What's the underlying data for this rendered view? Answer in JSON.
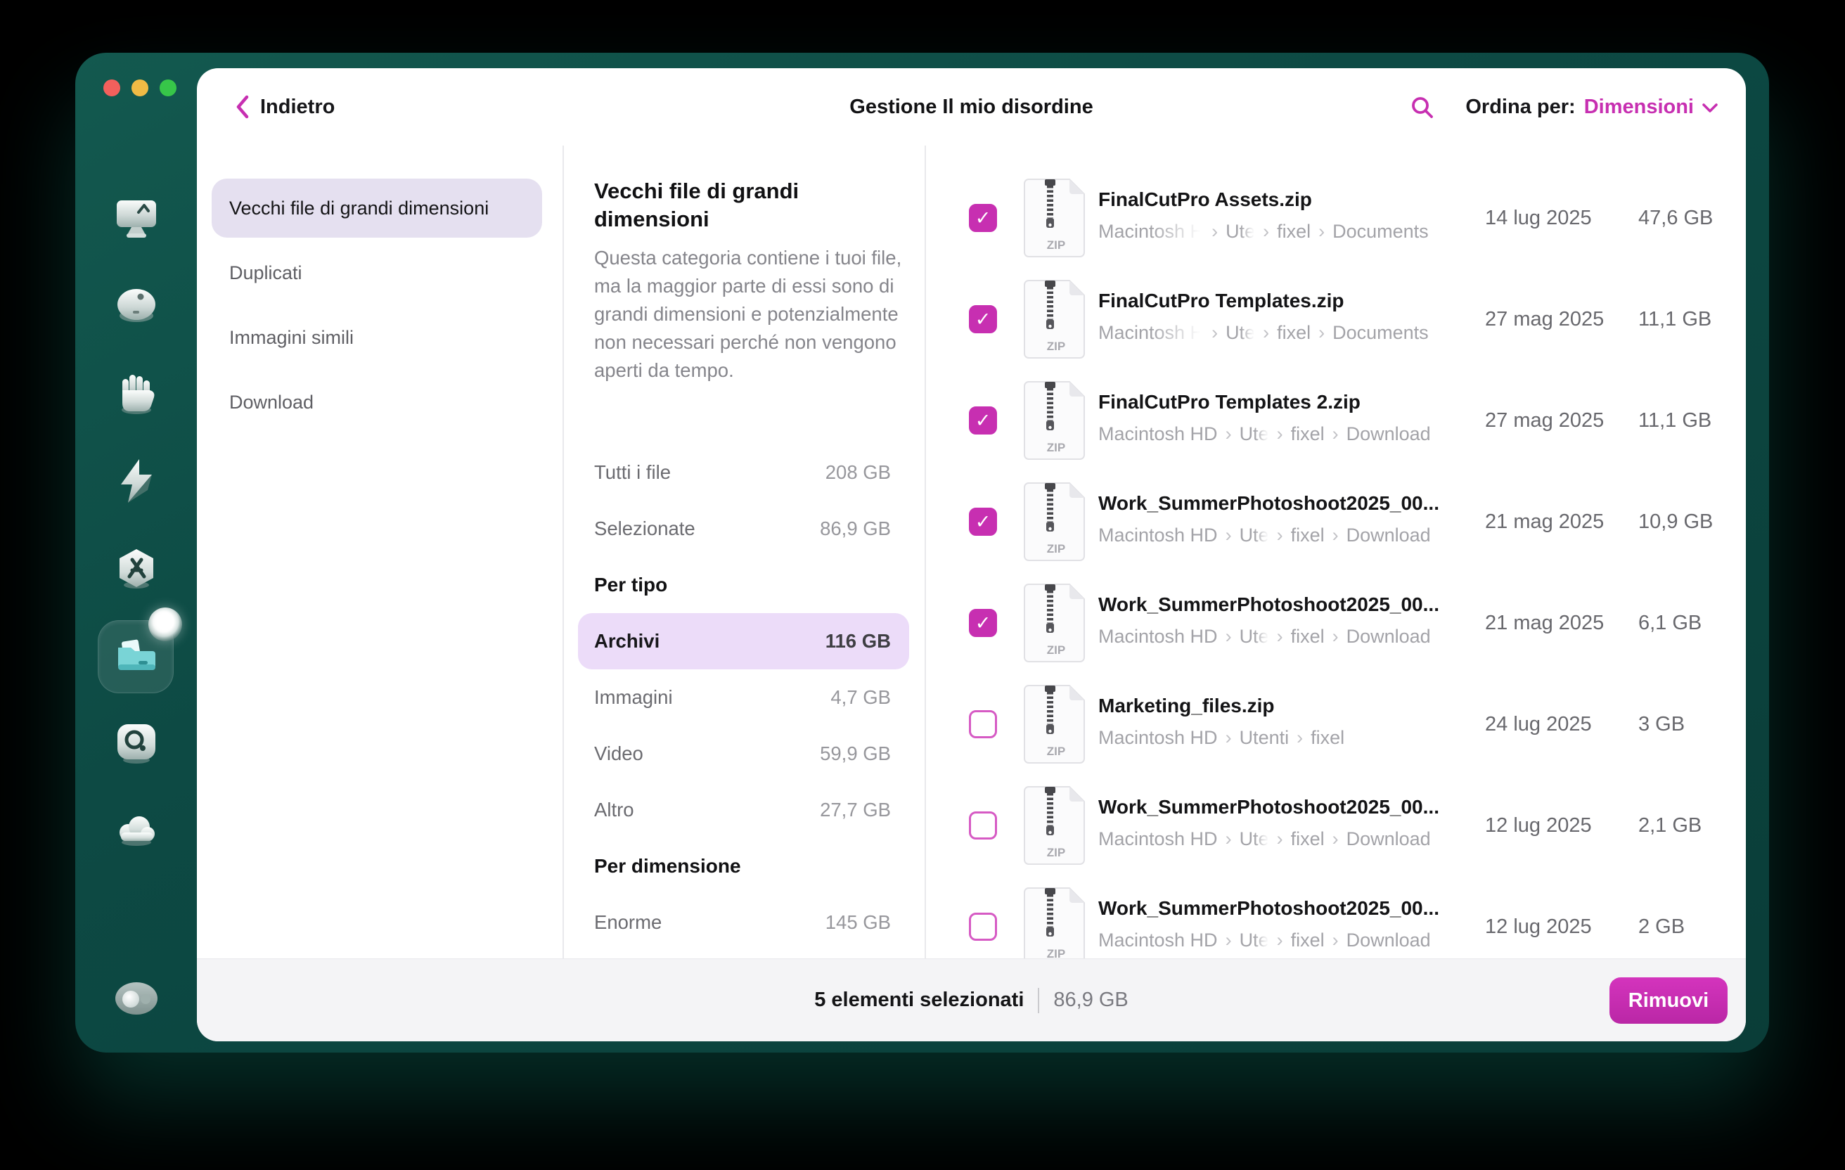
{
  "colors": {
    "accent": "#c72fb1",
    "window_teal": "#0d4a44",
    "selected_pill_lavender": "#e5e0f0",
    "highlight_pill_purple": "#ecdcf9",
    "footer_bg": "#f4f4f6"
  },
  "icons": {
    "header": [
      "back-chevron-icon",
      "search-icon",
      "chevron-down-icon"
    ],
    "sidebar": [
      "monitor-icon",
      "disk-icon",
      "hand-icon",
      "lightning-icon",
      "applications-hexagon-icon",
      "folder-icon",
      "lens-icon",
      "cloud-icon",
      "assistant-icon"
    ],
    "file_type": "zip-file-icon"
  },
  "header": {
    "back_label": "Indietro",
    "title": "Gestione Il mio disordine",
    "sort_label": "Ordina per:",
    "sort_value": "Dimensioni"
  },
  "sidebar": {
    "selected_index": 5
  },
  "categories": {
    "items": [
      {
        "label": "Vecchi file di grandi dimensioni",
        "selected": true
      },
      {
        "label": "Duplicati",
        "selected": false
      },
      {
        "label": "Immagini simili",
        "selected": false
      },
      {
        "label": "Download",
        "selected": false
      }
    ]
  },
  "detail": {
    "title": "Vecchi file di grandi dimensioni",
    "description": "Questa categoria contiene i tuoi file, ma la maggior parte di essi sono di grandi dimensioni e potenzialmente non necessari perché non vengono aperti da tempo.",
    "stats": [
      {
        "label": "Tutti i file",
        "value": "208 GB"
      },
      {
        "label": "Selezionate",
        "value": "86,9 GB"
      },
      {
        "label": "Per tipo",
        "header": true
      },
      {
        "label": "Archivi",
        "value": "116 GB",
        "highlighted": true
      },
      {
        "label": "Immagini",
        "value": "4,7 GB"
      },
      {
        "label": "Video",
        "value": "59,9 GB"
      },
      {
        "label": "Altro",
        "value": "27,7 GB"
      },
      {
        "label": "Per dimensione",
        "header": true
      },
      {
        "label": "Enorme",
        "value": "145 GB"
      }
    ]
  },
  "files": {
    "rows": [
      {
        "checked": true,
        "name": "FinalCutPro Assets.zip",
        "path": [
          {
            "t": "Macintosh H",
            "fade": true
          },
          {
            "t": "Ute",
            "fade": true
          },
          {
            "t": "fixel"
          },
          {
            "t": "Documents"
          }
        ],
        "date": "14 lug 2025",
        "size": "47,6 GB"
      },
      {
        "checked": true,
        "name": "FinalCutPro Templates.zip",
        "path": [
          {
            "t": "Macintosh H",
            "fade": true
          },
          {
            "t": "Ute",
            "fade": true
          },
          {
            "t": "fixel"
          },
          {
            "t": "Documents"
          }
        ],
        "date": "27 mag 2025",
        "size": "11,1 GB"
      },
      {
        "checked": true,
        "name": "FinalCutPro Templates 2.zip",
        "path": [
          {
            "t": "Macintosh HD"
          },
          {
            "t": "Ute",
            "fade": true
          },
          {
            "t": "fixel"
          },
          {
            "t": "Download"
          }
        ],
        "date": "27 mag 2025",
        "size": "11,1 GB"
      },
      {
        "checked": true,
        "name": "Work_SummerPhotoshoot2025_00...",
        "path": [
          {
            "t": "Macintosh HD"
          },
          {
            "t": "Ute",
            "fade": true
          },
          {
            "t": "fixel"
          },
          {
            "t": "Download"
          }
        ],
        "date": "21 mag 2025",
        "size": "10,9 GB"
      },
      {
        "checked": true,
        "name": "Work_SummerPhotoshoot2025_00...",
        "path": [
          {
            "t": "Macintosh HD"
          },
          {
            "t": "Ute",
            "fade": true
          },
          {
            "t": "fixel"
          },
          {
            "t": "Download"
          }
        ],
        "date": "21 mag 2025",
        "size": "6,1 GB"
      },
      {
        "checked": false,
        "name": "Marketing_files.zip",
        "path": [
          {
            "t": "Macintosh HD"
          },
          {
            "t": "Utenti"
          },
          {
            "t": "fixel"
          }
        ],
        "date": "24 lug 2025",
        "size": "3 GB"
      },
      {
        "checked": false,
        "name": "Work_SummerPhotoshoot2025_00...",
        "path": [
          {
            "t": "Macintosh HD"
          },
          {
            "t": "Ute",
            "fade": true
          },
          {
            "t": "fixel"
          },
          {
            "t": "Download"
          }
        ],
        "date": "12 lug 2025",
        "size": "2,1 GB"
      },
      {
        "checked": false,
        "name": "Work_SummerPhotoshoot2025_00...",
        "path": [
          {
            "t": "Macintosh HD"
          },
          {
            "t": "Ute",
            "fade": true
          },
          {
            "t": "fixel"
          },
          {
            "t": "Download"
          }
        ],
        "date": "12 lug 2025",
        "size": "2 GB"
      }
    ]
  },
  "footer": {
    "selection_count": "5 elementi selezionati",
    "selection_size": "86,9 GB",
    "remove_label": "Rimuovi"
  }
}
